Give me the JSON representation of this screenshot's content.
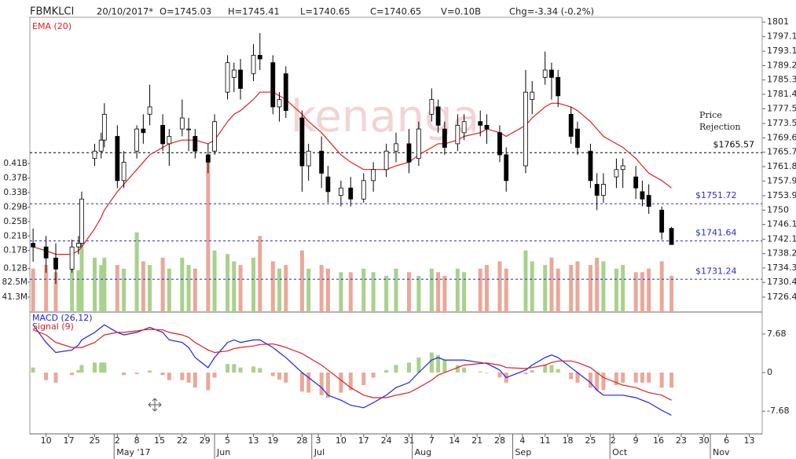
{
  "header": {
    "symbol": "FBMKLCI",
    "date": "20/10/2017*",
    "open": "O=1745.03",
    "high": "H=1745.41",
    "low": "L=1740.65",
    "close": "C=1740.65",
    "volume": "V=0.10B",
    "change": "Chg=-3.34 (-0.2%)"
  },
  "chart_data": [
    {
      "type": "candlestick",
      "watermark": "kenanga",
      "x": [
        "2017-04-06",
        "2017-04-10",
        "2017-04-13",
        "2017-04-18",
        "2017-04-20",
        "2017-04-21",
        "2017-04-25",
        "2017-04-27",
        "2017-04-28",
        "2017-05-02",
        "2017-05-04",
        "2017-05-08",
        "2017-05-10",
        "2017-05-12",
        "2017-05-16",
        "2017-05-18",
        "2017-05-22",
        "2017-05-24",
        "2017-05-26",
        "2017-05-30",
        "2017-06-01",
        "2017-06-05",
        "2017-06-07",
        "2017-06-09",
        "2017-06-13",
        "2017-06-15",
        "2017-06-19",
        "2017-06-21",
        "2017-06-23",
        "2017-06-28",
        "2017-06-30",
        "2017-07-04",
        "2017-07-06",
        "2017-07-10",
        "2017-07-13",
        "2017-07-17",
        "2017-07-20",
        "2017-07-24",
        "2017-07-27",
        "2017-07-31",
        "2017-08-03",
        "2017-08-07",
        "2017-08-09",
        "2017-08-11",
        "2017-08-15",
        "2017-08-17",
        "2017-08-22",
        "2017-08-24",
        "2017-08-28",
        "2017-08-30",
        "2017-09-05",
        "2017-09-07",
        "2017-09-11",
        "2017-09-13",
        "2017-09-15",
        "2017-09-19",
        "2017-09-21",
        "2017-09-25",
        "2017-09-27",
        "2017-09-29",
        "2017-10-03",
        "2017-10-05",
        "2017-10-09",
        "2017-10-11",
        "2017-10-13",
        "2017-10-17",
        "2017-10-20"
      ],
      "xlim": [
        "2017-04-05",
        "2017-11-17"
      ],
      "open": [
        1741,
        1740,
        1737,
        1734,
        1740,
        1741,
        1764,
        1766,
        1769,
        1770,
        1758,
        1766,
        1772,
        1776,
        1773,
        1768,
        1772,
        1772,
        1770,
        1765,
        1766,
        1782,
        1786,
        1788,
        1787,
        1792,
        1790,
        1778,
        1787,
        1775,
        1762,
        1766,
        1759,
        1754,
        1756,
        1753,
        1758,
        1761,
        1766,
        1768,
        1764,
        1776,
        1778,
        1772,
        1768,
        1771,
        1774,
        1773,
        1771,
        1765,
        1762,
        1780,
        1786,
        1788,
        1786,
        1776,
        1772,
        1766,
        1757,
        1754,
        1759,
        1761,
        1759,
        1755,
        1754,
        1750,
        1745.03
      ],
      "high": [
        1745,
        1743,
        1741,
        1742,
        1743,
        1755,
        1768,
        1771,
        1779,
        1773,
        1766,
        1773,
        1776,
        1784,
        1776,
        1772,
        1780,
        1775,
        1772,
        1768,
        1776,
        1792,
        1790,
        1791,
        1795,
        1798,
        1792,
        1782,
        1789,
        1777,
        1768,
        1770,
        1762,
        1758,
        1759,
        1760,
        1763,
        1768,
        1771,
        1772,
        1774,
        1783,
        1780,
        1774,
        1776,
        1776,
        1777,
        1776,
        1773,
        1767,
        1788,
        1785,
        1793,
        1790,
        1788,
        1778,
        1774,
        1768,
        1760,
        1760,
        1764,
        1764,
        1762,
        1758,
        1757,
        1751,
        1745.41
      ],
      "low": [
        1736,
        1733,
        1730,
        1733,
        1738,
        1740,
        1762,
        1764,
        1767,
        1756,
        1756,
        1764,
        1768,
        1773,
        1766,
        1762,
        1770,
        1766,
        1764,
        1760,
        1765,
        1780,
        1782,
        1780,
        1785,
        1788,
        1776,
        1774,
        1775,
        1755,
        1758,
        1756,
        1752,
        1751,
        1751,
        1752,
        1755,
        1759,
        1763,
        1760,
        1762,
        1774,
        1771,
        1765,
        1766,
        1769,
        1770,
        1768,
        1763,
        1755,
        1760,
        1776,
        1784,
        1780,
        1778,
        1768,
        1765,
        1756,
        1750,
        1752,
        1756,
        1756,
        1753,
        1751,
        1749,
        1742,
        1740.65
      ],
      "close": [
        1740,
        1737,
        1734,
        1740,
        1741,
        1753,
        1766,
        1769,
        1776,
        1758,
        1763,
        1772,
        1771,
        1778,
        1768,
        1770,
        1775,
        1772,
        1766,
        1763,
        1774,
        1790,
        1788,
        1783,
        1792,
        1791,
        1778,
        1780,
        1777,
        1762,
        1766,
        1760,
        1755,
        1756,
        1753,
        1758,
        1761,
        1766,
        1768,
        1763,
        1772,
        1780,
        1773,
        1767,
        1773,
        1774,
        1773,
        1772,
        1765,
        1758,
        1782,
        1782,
        1788,
        1786,
        1781,
        1770,
        1767,
        1758,
        1754,
        1757,
        1761,
        1762,
        1756,
        1753,
        1751,
        1744,
        1740.65
      ],
      "ylim": [
        1722.35,
        1802.3
      ],
      "yticks": [
        1801,
        1797.1,
        1793.1,
        1789.2,
        1785.3,
        1781.4,
        1777.5,
        1773.5,
        1769.6,
        1765.7,
        1761.8,
        1757.9,
        1753.9,
        1750,
        1746.1,
        1742.1,
        1738.2,
        1734.3,
        1730.4,
        1726.4
      ],
      "series": [
        {
          "name": "EMA (20)",
          "color": "#e02020",
          "values": [
            1740,
            1739,
            1738,
            1738,
            1739,
            1740,
            1745,
            1748,
            1750,
            1755,
            1757,
            1761,
            1763,
            1765,
            1767,
            1768,
            1769,
            1769,
            1769,
            1768,
            1769,
            1774,
            1776,
            1777,
            1780,
            1782,
            1782,
            1781,
            1780,
            1776,
            1774,
            1771,
            1769,
            1765,
            1763,
            1761,
            1761,
            1761,
            1762,
            1763,
            1765,
            1767,
            1768,
            1768,
            1769,
            1770,
            1771,
            1772,
            1771,
            1770,
            1773,
            1775,
            1778,
            1779,
            1779,
            1778,
            1777,
            1774,
            1772,
            1770,
            1768,
            1767,
            1764,
            1762,
            1760,
            1758,
            1756
          ]
        }
      ],
      "volume": {
        "up_color": "#a9d18e",
        "down_color": "#e9a898",
        "y2lim": [
          0,
          814000000
        ],
        "values": [
          120000000,
          130000000,
          110000000,
          140000000,
          115000000,
          180000000,
          150000000,
          130000000,
          150000000,
          130000000,
          120000000,
          220000000,
          140000000,
          130000000,
          150000000,
          120000000,
          150000000,
          130000000,
          120000000,
          420000000,
          170000000,
          160000000,
          140000000,
          130000000,
          150000000,
          210000000,
          140000000,
          120000000,
          130000000,
          170000000,
          120000000,
          130000000,
          120000000,
          110000000,
          110000000,
          120000000,
          110000000,
          100000000,
          120000000,
          110000000,
          100000000,
          120000000,
          110000000,
          100000000,
          120000000,
          110000000,
          120000000,
          130000000,
          140000000,
          120000000,
          170000000,
          140000000,
          130000000,
          150000000,
          120000000,
          130000000,
          140000000,
          130000000,
          150000000,
          140000000,
          120000000,
          130000000,
          110000000,
          110000000,
          120000000,
          140000000,
          100000000
        ],
        "y2ticks": [
          {
            "value": 410000000,
            "label": "0.41B"
          },
          {
            "value": 370000000,
            "label": "0.37B"
          },
          {
            "value": 330000000,
            "label": "0.33B"
          },
          {
            "value": 290000000,
            "label": "0.29B"
          },
          {
            "value": 250000000,
            "label": "0.25B"
          },
          {
            "value": 210000000,
            "label": "0.21B"
          },
          {
            "value": 170000000,
            "label": "0.17B"
          },
          {
            "value": 120000000,
            "label": "0.12B"
          },
          {
            "value": 82500000,
            "label": "82.5M"
          },
          {
            "value": 41300000,
            "label": "41.3M"
          }
        ]
      },
      "levels": [
        {
          "value": 1765.57,
          "label": "$1765.57",
          "color": "#000000"
        },
        {
          "value": 1751.72,
          "label": "$1751.72",
          "color": "#2a2ad0"
        },
        {
          "value": 1741.64,
          "label": "$1741.64",
          "color": "#2a2ad0"
        },
        {
          "value": 1731.24,
          "label": "$1731.24",
          "color": "#2a2ad0"
        }
      ],
      "annotation": [
        "Price",
        "Rejection"
      ]
    },
    {
      "type": "macd",
      "ylim": [
        -12.2,
        11.9
      ],
      "yticks": [
        7.68,
        0,
        -7.68
      ],
      "series": [
        {
          "name": "MACD (26,12)",
          "color": "#2020e0",
          "values": [
            9.5,
            6,
            4,
            4.5,
            5.5,
            6.5,
            8,
            9,
            9.5,
            8,
            7.5,
            8,
            8.5,
            9,
            8,
            6.5,
            6,
            5,
            3,
            1,
            3,
            6,
            6.5,
            6,
            6.5,
            6.5,
            5,
            4,
            3,
            0,
            -1,
            -3,
            -4.5,
            -5.5,
            -6.5,
            -7,
            -6,
            -4.5,
            -3,
            -2,
            0,
            2.5,
            3,
            2.5,
            2.5,
            2.5,
            2,
            1.8,
            0.5,
            -1,
            0.5,
            1.5,
            3,
            3.5,
            3,
            1,
            0,
            -2,
            -3.5,
            -4.5,
            -4.5,
            -4.5,
            -5,
            -5.5,
            -6,
            -7.5,
            -8.5
          ]
        },
        {
          "name": "Signal (9)",
          "color": "#e02020",
          "values": [
            8.5,
            7.5,
            6,
            5,
            5,
            5,
            6,
            7,
            7.5,
            8,
            8,
            8.3,
            8.5,
            8.6,
            8.5,
            8,
            7.5,
            7,
            6,
            4.5,
            4,
            4.3,
            4.8,
            5,
            5.3,
            5.6,
            5.7,
            5.4,
            5,
            3.8,
            3,
            1.5,
            0.5,
            -1.5,
            -3,
            -4.5,
            -5,
            -5,
            -4.5,
            -4,
            -3,
            -1.5,
            -0.5,
            0,
            1,
            1.5,
            1.8,
            1.9,
            1.5,
            1,
            0.8,
            1,
            1.5,
            2,
            2.3,
            2.3,
            2,
            1,
            0,
            -1,
            -2,
            -2.5,
            -3,
            -3.5,
            -4,
            -4.5,
            -5.5
          ]
        }
      ],
      "histogram": [
        1,
        -1.5,
        -2,
        -0.5,
        0.5,
        1.5,
        2,
        2,
        2,
        0,
        -0.5,
        -0.3,
        0,
        0.4,
        -0.5,
        -1.5,
        -1.5,
        -2,
        -3,
        -3.5,
        -1,
        1.7,
        1.7,
        1,
        1.2,
        0.9,
        -0.7,
        -1.4,
        -2,
        -3.8,
        -4,
        -4.5,
        -5,
        -4,
        -3.5,
        -2.5,
        -1,
        0.5,
        1.5,
        2,
        3,
        4,
        3.5,
        2.5,
        1.5,
        1,
        0.2,
        -0.1,
        -1,
        -2,
        -0.3,
        0.5,
        1.5,
        1.5,
        0.7,
        -1.3,
        -2,
        -3,
        -3.5,
        -3.5,
        -2.5,
        -2,
        -2,
        -2,
        -2,
        -3,
        -3
      ],
      "xticks": [
        {
          "value": "2017-04-10",
          "label": "10"
        },
        {
          "value": "2017-04-17",
          "label": "17"
        },
        {
          "value": "2017-04-25",
          "label": "25"
        },
        {
          "value": "2017-05-02",
          "label": "2"
        },
        {
          "value": "2017-05-08",
          "label": "8"
        },
        {
          "value": "2017-05-15",
          "label": "15"
        },
        {
          "value": "2017-05-22",
          "label": "22"
        },
        {
          "value": "2017-05-29",
          "label": "29"
        },
        {
          "value": "2017-06-05",
          "label": "5"
        },
        {
          "value": "2017-06-13",
          "label": "13"
        },
        {
          "value": "2017-06-19",
          "label": "19"
        },
        {
          "value": "2017-06-28",
          "label": "28"
        },
        {
          "value": "2017-07-03",
          "label": "3"
        },
        {
          "value": "2017-07-10",
          "label": "10"
        },
        {
          "value": "2017-07-17",
          "label": "17"
        },
        {
          "value": "2017-07-24",
          "label": "24"
        },
        {
          "value": "2017-07-31",
          "label": "31"
        },
        {
          "value": "2017-08-07",
          "label": "7"
        },
        {
          "value": "2017-08-14",
          "label": "14"
        },
        {
          "value": "2017-08-21",
          "label": "21"
        },
        {
          "value": "2017-08-28",
          "label": "28"
        },
        {
          "value": "2017-09-04",
          "label": "4"
        },
        {
          "value": "2017-09-11",
          "label": "11"
        },
        {
          "value": "2017-09-18",
          "label": "18"
        },
        {
          "value": "2017-09-25",
          "label": "25"
        },
        {
          "value": "2017-10-02",
          "label": "2"
        },
        {
          "value": "2017-10-09",
          "label": "9"
        },
        {
          "value": "2017-10-16",
          "label": "16"
        },
        {
          "value": "2017-10-23",
          "label": "23"
        },
        {
          "value": "2017-10-30",
          "label": "30"
        },
        {
          "value": "2017-11-06",
          "label": "6"
        },
        {
          "value": "2017-11-13",
          "label": "13"
        }
      ],
      "month_ticks": [
        {
          "value": "2017-05-01",
          "label": "May '17"
        },
        {
          "value": "2017-06-01",
          "label": "Jun"
        },
        {
          "value": "2017-07-01",
          "label": "Jul"
        },
        {
          "value": "2017-08-01",
          "label": "Aug"
        },
        {
          "value": "2017-09-01",
          "label": "Sep"
        },
        {
          "value": "2017-10-01",
          "label": "Oct"
        },
        {
          "value": "2017-11-01",
          "label": "Nov"
        }
      ]
    }
  ]
}
